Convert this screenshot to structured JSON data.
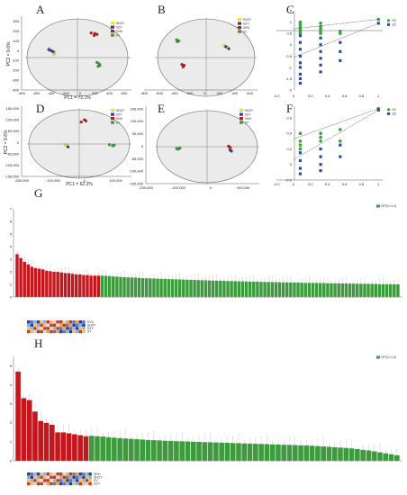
{
  "panels": {
    "A": "A",
    "B": "B",
    "C": "C",
    "D": "D",
    "E": "E",
    "F": "F",
    "G": "G",
    "H": "H"
  },
  "panels_text": {
    "A_ylabel": "PC2 = 9.6%",
    "A_xlabel": "PC1 = 72.1%",
    "D_ylabel": "PC2 = 9.6%",
    "D_xlabel": "PC1 = 62.2%"
  },
  "colors": {
    "yellow": "#f2e21c",
    "blue": "#2f3fa6",
    "red": "#c4161c",
    "green": "#3d9a3d",
    "perm_green": "#3aa53a",
    "perm_blue": "#2f4aa8"
  },
  "chart_data": [
    {
      "panel": "A",
      "type": "scatter",
      "xlabel": "PC1 = 72.1%",
      "ylabel": "PC2 = 9.6%",
      "x_ticks": [
        "-800",
        "-600",
        "-400",
        "-200",
        "0",
        "200",
        "400",
        "600"
      ],
      "y_ticks": [
        "300",
        "200",
        "100",
        "0",
        "-100",
        "-200",
        "-300",
        "-400"
      ],
      "xlim": [
        -800,
        700
      ],
      "ylim": [
        -400,
        350
      ],
      "legend": [
        "SHZY",
        "SZY",
        "SHH",
        "SY"
      ],
      "series": [
        {
          "name": "SHZY",
          "color": "yellow",
          "points": [
            [
              -420,
              20
            ],
            [
              -380,
              -5
            ],
            [
              -350,
              -20
            ],
            [
              -360,
              -35
            ]
          ]
        },
        {
          "name": "SZY",
          "color": "blue",
          "points": [
            [
              -430,
              10
            ],
            [
              -400,
              0
            ],
            [
              -370,
              -10
            ]
          ]
        },
        {
          "name": "SHH",
          "color": "red",
          "points": [
            [
              150,
              180
            ],
            [
              200,
              175
            ],
            [
              230,
              165
            ],
            [
              190,
              155
            ]
          ]
        },
        {
          "name": "SY",
          "color": "green",
          "points": [
            [
              230,
              -120
            ],
            [
              260,
              -135
            ],
            [
              270,
              -150
            ],
            [
              245,
              -160
            ]
          ]
        }
      ]
    },
    {
      "panel": "B",
      "type": "scatter",
      "x_ticks": [
        "-800",
        "-600",
        "-400",
        "-200",
        "0",
        "200",
        "400",
        "600"
      ],
      "xlim": [
        -800,
        700
      ],
      "ylim": [
        -400,
        350
      ],
      "legend": [
        "SHZY",
        "SZY",
        "SHH",
        "SY"
      ],
      "series": [
        {
          "name": "SHZY",
          "color": "yellow",
          "points": [
            [
              260,
              50
            ],
            [
              290,
              40
            ],
            [
              305,
              30
            ]
          ]
        },
        {
          "name": "SZY",
          "color": "blue",
          "points": [
            [
              280,
              40
            ],
            [
              320,
              20
            ]
          ]
        },
        {
          "name": "SHH",
          "color": "red",
          "points": [
            [
              -300,
              -140
            ],
            [
              -270,
              -150
            ],
            [
              -285,
              -165
            ]
          ]
        },
        {
          "name": "SY",
          "color": "green",
          "points": [
            [
              -370,
              110
            ],
            [
              -340,
              100
            ],
            [
              -360,
              90
            ]
          ]
        }
      ]
    },
    {
      "panel": "C",
      "type": "scatter",
      "x_ticks": [
        "-0.2",
        "0",
        "0.2",
        "0.4",
        "0.6",
        "0.8",
        "1"
      ],
      "y_ticks": [
        "1.5",
        "1",
        "0.5",
        "0",
        "-0.5",
        "-1",
        "-1.5",
        "-2"
      ],
      "xlim": [
        -0.2,
        1.05
      ],
      "ylim": [
        -2,
        1.5
      ],
      "legend": [
        "R2",
        "Q2"
      ],
      "series": [
        {
          "name": "R2",
          "color": "perm_green",
          "points": [
            [
              0.08,
              1.0
            ],
            [
              0.08,
              0.9
            ],
            [
              0.08,
              0.8
            ],
            [
              0.08,
              0.7
            ],
            [
              0.08,
              0.6
            ],
            [
              0.08,
              0.5
            ],
            [
              0.32,
              0.95
            ],
            [
              0.32,
              0.8
            ],
            [
              0.32,
              0.7
            ],
            [
              0.32,
              0.6
            ],
            [
              0.32,
              0.5
            ],
            [
              0.55,
              0.6
            ],
            [
              0.55,
              0.5
            ],
            [
              1.0,
              1.12
            ]
          ]
        },
        {
          "name": "Q2",
          "color": "perm_blue",
          "points": [
            [
              0.08,
              0.4
            ],
            [
              0.08,
              0.1
            ],
            [
              0.08,
              -0.2
            ],
            [
              0.08,
              -0.5
            ],
            [
              0.08,
              -0.8
            ],
            [
              0.08,
              -1.0
            ],
            [
              0.08,
              -1.3
            ],
            [
              0.08,
              -1.5
            ],
            [
              0.08,
              -1.7
            ],
            [
              0.32,
              0.3
            ],
            [
              0.32,
              0.0
            ],
            [
              0.32,
              -0.3
            ],
            [
              0.32,
              -0.6
            ],
            [
              0.32,
              -0.9
            ],
            [
              0.32,
              -1.2
            ],
            [
              0.55,
              0.1
            ],
            [
              0.55,
              -0.3
            ],
            [
              0.55,
              -0.7
            ],
            [
              1.0,
              0.95
            ]
          ]
        }
      ]
    },
    {
      "panel": "D",
      "type": "scatter",
      "xlabel": "PC1 = 62.2%",
      "ylabel": "PC2 = 9.6%",
      "x_ticks": [
        "-200,000",
        "-100,000",
        "0",
        "100,000"
      ],
      "y_ticks": [
        "150,000",
        "100,000",
        "50,000",
        "0",
        "-50,000",
        "-100,000",
        "-150,000"
      ],
      "xlim": [
        -200000,
        150000
      ],
      "ylim": [
        -150000,
        160000
      ],
      "legend": [
        "SHZY",
        "SZY",
        "SHH",
        "SY"
      ],
      "series": [
        {
          "name": "SHZY",
          "color": "yellow",
          "points": [
            [
              -60000,
              -10000
            ],
            [
              -55000,
              -15000
            ]
          ]
        },
        {
          "name": "SZY",
          "color": "blue",
          "points": [
            [
              -52000,
              -20000
            ]
          ]
        },
        {
          "name": "SHH",
          "color": "red",
          "points": [
            [
              -10000,
              90000
            ],
            [
              0,
              100000
            ],
            [
              5000,
              95000
            ]
          ]
        },
        {
          "name": "SY",
          "color": "green",
          "points": [
            [
              80000,
              -10000
            ],
            [
              90000,
              -15000
            ],
            [
              95000,
              -12000
            ]
          ]
        }
      ]
    },
    {
      "panel": "E",
      "type": "scatter",
      "x_ticks": [
        "-200,000",
        "-100,000",
        "0",
        "100,000"
      ],
      "y_ticks": [
        "150,000",
        "100,000",
        "50,000",
        "0",
        "-50,000",
        "-100,000",
        "-150,000"
      ],
      "xlim": [
        -200000,
        150000
      ],
      "ylim": [
        -150000,
        160000
      ],
      "legend": [
        "SHZY",
        "SZY",
        "SHH",
        "SY"
      ],
      "series": [
        {
          "name": "SHZY",
          "color": "yellow",
          "points": [
            [
              58000,
              -10000
            ],
            [
              62000,
              -12000
            ]
          ]
        },
        {
          "name": "SZY",
          "color": "blue",
          "points": [
            [
              60000,
              -16000
            ],
            [
              64000,
              -20000
            ]
          ]
        },
        {
          "name": "SHH",
          "color": "red",
          "points": [
            [
              55000,
              0
            ],
            [
              60000,
              -5000
            ]
          ]
        },
        {
          "name": "SY",
          "color": "green",
          "points": [
            [
              -105000,
              -10000
            ],
            [
              -100000,
              -12000
            ],
            [
              -95000,
              -8000
            ]
          ]
        }
      ]
    },
    {
      "panel": "F",
      "type": "scatter",
      "x_ticks": [
        "-0.2",
        "0",
        "0.2",
        "0.4",
        "0.6",
        "0.8",
        "1"
      ],
      "y_ticks": [
        "0.6",
        "0.4",
        "0.2",
        "0",
        "-0.2"
      ],
      "xlim": [
        -0.2,
        1.05
      ],
      "ylim": [
        -0.2,
        0.75
      ],
      "legend": [
        "R2",
        "Q2"
      ],
      "series": [
        {
          "name": "R2",
          "color": "perm_green",
          "points": [
            [
              0.08,
              0.4
            ],
            [
              0.08,
              0.3
            ],
            [
              0.08,
              0.25
            ],
            [
              0.08,
              0.2
            ],
            [
              0.32,
              0.4
            ],
            [
              0.32,
              0.35
            ],
            [
              0.32,
              0.3
            ],
            [
              0.55,
              0.45
            ],
            [
              0.55,
              0.3
            ],
            [
              1.0,
              0.72
            ]
          ]
        },
        {
          "name": "Q2",
          "color": "perm_blue",
          "points": [
            [
              0.08,
              0.15
            ],
            [
              0.08,
              0.05
            ],
            [
              0.08,
              -0.05
            ],
            [
              0.08,
              -0.12
            ],
            [
              0.32,
              0.2
            ],
            [
              0.32,
              0.1
            ],
            [
              0.32,
              0.0
            ],
            [
              0.32,
              -0.08
            ],
            [
              0.55,
              0.25
            ],
            [
              0.55,
              0.1
            ],
            [
              1.0,
              0.7
            ]
          ]
        }
      ]
    },
    {
      "panel": "G",
      "type": "bar",
      "y_ticks": [
        "7",
        "6",
        "5",
        "4",
        "3",
        "2",
        "1",
        "0"
      ],
      "ylim": [
        0,
        7
      ],
      "legend": [
        "VIP(1>1.0)"
      ],
      "red_values": [
        3.4,
        3.1,
        2.8,
        2.6,
        2.4,
        2.3,
        2.25,
        2.2,
        2.1,
        2.05,
        2.0,
        2.0,
        1.95,
        1.9,
        1.9,
        1.85,
        1.8,
        1.8,
        1.75,
        1.75,
        1.7,
        1.7,
        1.7
      ],
      "green_values": [
        1.7,
        1.68,
        1.66,
        1.64,
        1.62,
        1.6,
        1.58,
        1.56,
        1.55,
        1.54,
        1.52,
        1.5,
        1.49,
        1.48,
        1.47,
        1.46,
        1.45,
        1.44,
        1.43,
        1.42,
        1.41,
        1.4,
        1.39,
        1.38,
        1.37,
        1.36,
        1.35,
        1.34,
        1.33,
        1.32,
        1.31,
        1.3,
        1.3,
        1.29,
        1.28,
        1.27,
        1.26,
        1.25,
        1.25,
        1.24,
        1.23,
        1.22,
        1.22,
        1.21,
        1.2,
        1.2,
        1.19,
        1.18,
        1.18,
        1.17,
        1.16,
        1.16,
        1.15,
        1.15,
        1.14,
        1.13,
        1.13,
        1.12,
        1.12,
        1.11,
        1.11,
        1.1,
        1.1,
        1.09,
        1.09,
        1.08,
        1.08,
        1.07,
        1.07,
        1.06,
        1.06,
        1.05,
        1.05,
        1.04,
        1.04,
        1.03,
        1.03,
        1.02,
        1.02,
        1.01,
        1.01
      ],
      "heatmap_labels": [
        "SYU",
        "SHZY",
        "SZY",
        "SY"
      ]
    },
    {
      "panel": "H",
      "type": "bar",
      "y_ticks": [
        "5",
        "4",
        "3",
        "2",
        "1",
        "0"
      ],
      "ylim": [
        0,
        5.5
      ],
      "legend": [
        "VIP(1>1.0)"
      ],
      "red_values": [
        4.7,
        3.3,
        3.2,
        2.6,
        2.1,
        2.0,
        1.9,
        1.5,
        1.5,
        1.45,
        1.4,
        1.35,
        1.3
      ],
      "green_values": [
        1.32,
        1.3,
        1.28,
        1.25,
        1.22,
        1.2,
        1.18,
        1.16,
        1.14,
        1.12,
        1.1,
        1.09,
        1.08,
        1.06,
        1.05,
        1.04,
        1.03,
        1.02,
        1.01,
        1.0,
        0.99,
        0.98,
        0.97,
        0.96,
        0.95,
        0.94,
        0.93,
        0.92,
        0.91,
        0.9,
        0.89,
        0.88,
        0.87,
        0.86,
        0.85,
        0.84,
        0.83,
        0.82,
        0.81,
        0.8,
        0.78,
        0.76,
        0.74,
        0.72,
        0.7,
        0.68,
        0.66,
        0.62,
        0.58,
        0.55,
        0.5,
        0.45,
        0.4,
        0.35,
        0.3
      ],
      "heatmap_labels": [
        "SHH",
        "SHZY",
        "SY",
        "SZY"
      ]
    }
  ]
}
